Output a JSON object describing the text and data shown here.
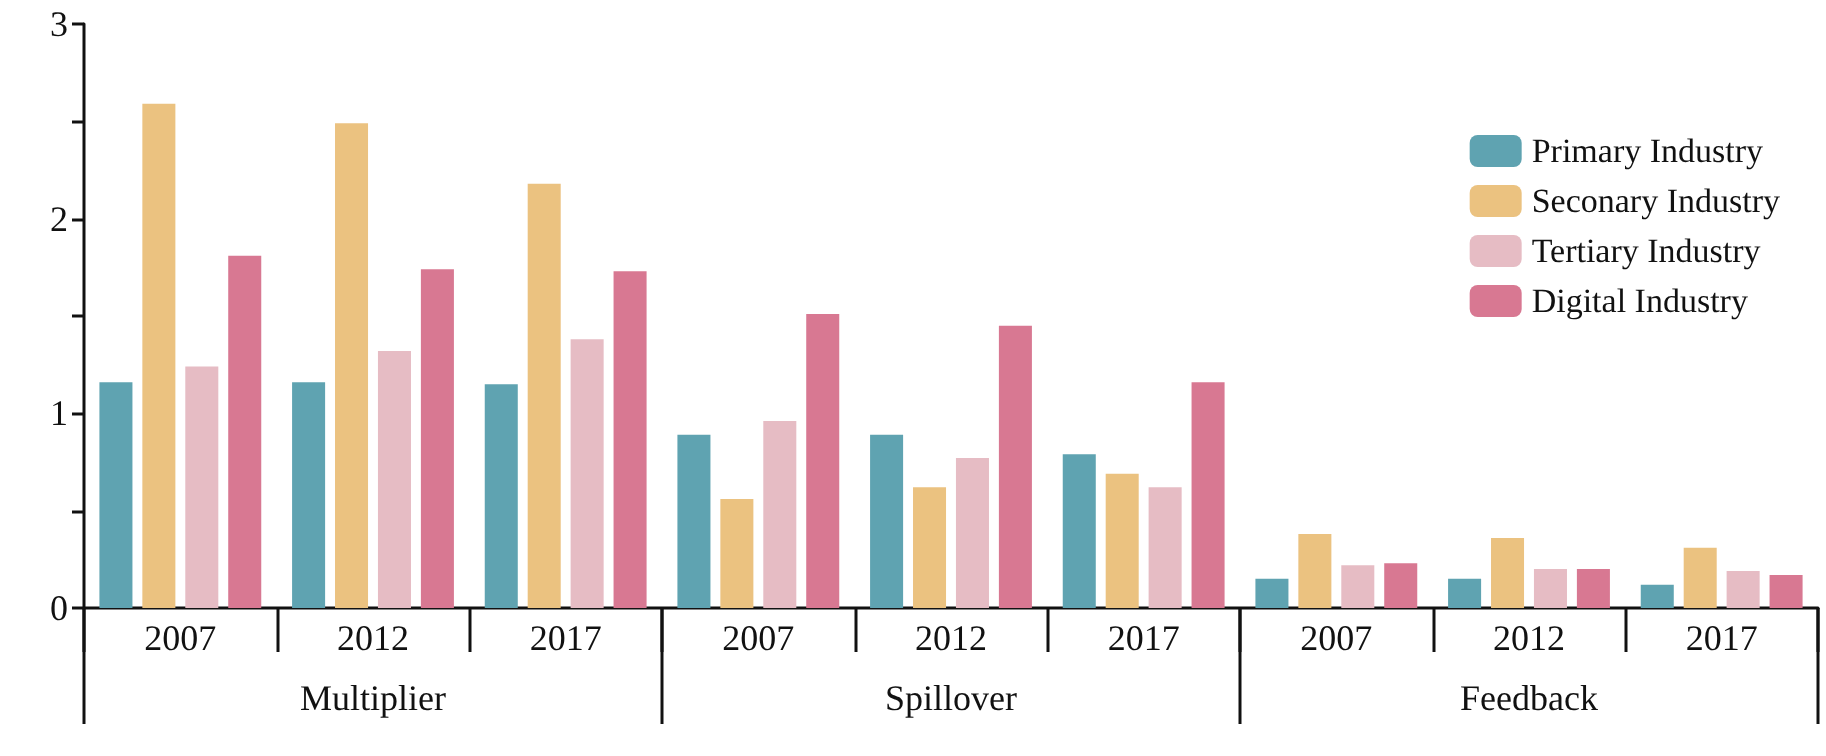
{
  "chart_data": {
    "type": "bar",
    "categories": [
      "2007",
      "2012",
      "2017",
      "2007",
      "2012",
      "2017",
      "2007",
      "2012",
      "2017"
    ],
    "annotations": [
      "Multiplier",
      "Spillover",
      "Feedback"
    ],
    "series": [
      {
        "name": "Primary Industry",
        "color": "#5fa3b1",
        "values": [
          1.16,
          1.16,
          1.15,
          0.89,
          0.89,
          0.79,
          0.15,
          0.15,
          0.12
        ]
      },
      {
        "name": "Seconary Industry",
        "color": "#ebc280",
        "values": [
          2.59,
          2.49,
          2.18,
          0.56,
          0.62,
          0.69,
          0.38,
          0.36,
          0.31
        ]
      },
      {
        "name": "Tertiary Industry",
        "color": "#e6bcc4",
        "values": [
          1.24,
          1.32,
          1.38,
          0.96,
          0.77,
          0.62,
          0.22,
          0.2,
          0.19
        ]
      },
      {
        "name": "Digital Industry",
        "color": "#d87892",
        "values": [
          1.81,
          1.74,
          1.73,
          1.51,
          1.45,
          1.16,
          0.23,
          0.2,
          0.17
        ]
      }
    ],
    "ylim": [
      0,
      3
    ],
    "yticks": [
      0,
      {
        "value": 0.5,
        "label": null
      },
      1,
      {
        "value": 1.5,
        "label": null
      },
      2,
      {
        "value": 2.5,
        "label": null
      },
      3
    ],
    "grid": false,
    "legend": "top right"
  }
}
